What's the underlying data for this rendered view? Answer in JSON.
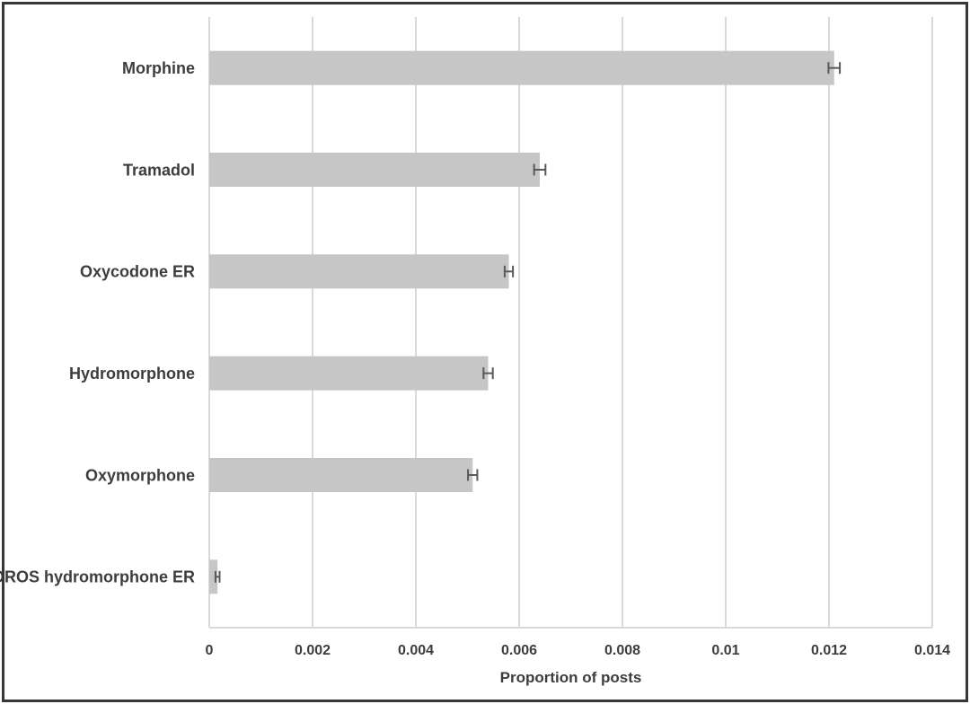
{
  "chart_data": {
    "type": "bar",
    "orientation": "horizontal",
    "title": "",
    "categories": [
      "Morphine",
      "Tramadol",
      "Oxycodone ER",
      "Hydromorphone",
      "Oxymorphone",
      "OROS hydromorphone ER"
    ],
    "values": [
      0.0121,
      0.0064,
      0.0058,
      0.0054,
      0.0051,
      0.00016
    ],
    "errors": [
      0.00011,
      0.00011,
      8e-05,
      9e-05,
      9e-05,
      4e-05
    ],
    "xlabel": "Proportion of posts",
    "ylabel": "",
    "xlim": [
      0,
      0.014
    ],
    "xticks": [
      0,
      0.002,
      0.004,
      0.006,
      0.008,
      0.01,
      0.012,
      0.014
    ],
    "xtick_labels": [
      "0",
      "0.002",
      "0.004",
      "0.006",
      "0.008",
      "0.01",
      "0.012",
      "0.014"
    ],
    "grid": "vertical-only",
    "legend": false,
    "error_bars": true,
    "colors": {
      "bar_fill": "#c6c6c6",
      "error_bar": "#595959",
      "gridline": "#d9d9d9",
      "text": "#3d3d3d",
      "frame_border": "#383838",
      "background": "#ffffff"
    }
  }
}
